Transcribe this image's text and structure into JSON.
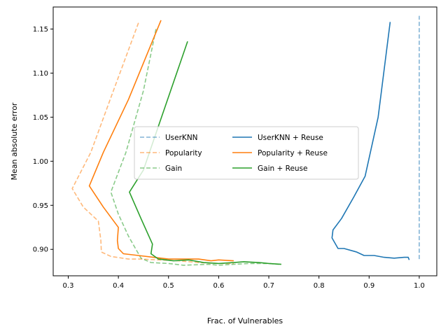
{
  "chart_data": {
    "type": "line",
    "title": "",
    "xlabel": "Frac. of Vulnerables",
    "ylabel": "Mean absolute error",
    "xlim": [
      0.27,
      1.035
    ],
    "ylim": [
      0.87,
      1.175
    ],
    "xticks": [
      0.3,
      0.4,
      0.5,
      0.6,
      0.7,
      0.8,
      0.9,
      1.0
    ],
    "xtick_labels": [
      "0.3",
      "0.4",
      "0.5",
      "0.6",
      "0.7",
      "0.8",
      "0.9",
      "1.0"
    ],
    "yticks": [
      0.9,
      0.95,
      1.0,
      1.05,
      1.1,
      1.15
    ],
    "ytick_labels": [
      "0.90",
      "0.95",
      "1.00",
      "1.05",
      "1.10",
      "1.15"
    ],
    "grid": false,
    "legend_position": "center-right",
    "series": [
      {
        "name": "UserKNN",
        "color": "#1f77b4",
        "style": "dashed",
        "faded": true,
        "points": [
          [
            1.0,
            0.889
          ],
          [
            1.0,
            0.93
          ],
          [
            1.0,
            1.0
          ],
          [
            1.0,
            1.165
          ]
        ]
      },
      {
        "name": "Popularity",
        "color": "#ff7f0e",
        "style": "dashed",
        "faded": true,
        "points": [
          [
            0.44,
            1.157
          ],
          [
            0.39,
            1.08
          ],
          [
            0.345,
            1.01
          ],
          [
            0.308,
            0.969
          ],
          [
            0.33,
            0.948
          ],
          [
            0.36,
            0.932
          ],
          [
            0.365,
            0.91
          ],
          [
            0.366,
            0.897
          ],
          [
            0.385,
            0.892
          ],
          [
            0.42,
            0.889
          ],
          [
            0.445,
            0.889
          ],
          [
            0.48,
            0.888
          ],
          [
            0.52,
            0.887
          ],
          [
            0.56,
            0.885
          ],
          [
            0.6,
            0.884
          ],
          [
            0.63,
            0.884
          ]
        ]
      },
      {
        "name": "Gain",
        "color": "#2ca02c",
        "style": "dashed",
        "faded": true,
        "points": [
          [
            0.475,
            1.15
          ],
          [
            0.45,
            1.08
          ],
          [
            0.415,
            1.01
          ],
          [
            0.385,
            0.965
          ],
          [
            0.4,
            0.94
          ],
          [
            0.42,
            0.915
          ],
          [
            0.435,
            0.9
          ],
          [
            0.445,
            0.89
          ],
          [
            0.465,
            0.885
          ],
          [
            0.5,
            0.884
          ],
          [
            0.53,
            0.882
          ],
          [
            0.58,
            0.883
          ],
          [
            0.6,
            0.882
          ],
          [
            0.63,
            0.883
          ],
          [
            0.66,
            0.884
          ],
          [
            0.7,
            0.884
          ],
          [
            0.72,
            0.883
          ]
        ]
      },
      {
        "name": "UserKNN + Reuse",
        "color": "#1f77b4",
        "style": "solid",
        "faded": false,
        "points": [
          [
            0.942,
            1.158
          ],
          [
            0.918,
            1.05
          ],
          [
            0.892,
            0.983
          ],
          [
            0.87,
            0.96
          ],
          [
            0.845,
            0.935
          ],
          [
            0.828,
            0.922
          ],
          [
            0.826,
            0.913
          ],
          [
            0.838,
            0.901
          ],
          [
            0.85,
            0.901
          ],
          [
            0.875,
            0.897
          ],
          [
            0.89,
            0.893
          ],
          [
            0.91,
            0.893
          ],
          [
            0.93,
            0.891
          ],
          [
            0.95,
            0.89
          ],
          [
            0.97,
            0.891
          ],
          [
            0.978,
            0.891
          ],
          [
            0.98,
            0.888
          ]
        ]
      },
      {
        "name": "Popularity + Reuse",
        "color": "#ff7f0e",
        "style": "solid",
        "faded": false,
        "points": [
          [
            0.485,
            1.16
          ],
          [
            0.42,
            1.07
          ],
          [
            0.37,
            1.01
          ],
          [
            0.342,
            0.972
          ],
          [
            0.37,
            0.948
          ],
          [
            0.4,
            0.925
          ],
          [
            0.398,
            0.91
          ],
          [
            0.4,
            0.901
          ],
          [
            0.41,
            0.895
          ],
          [
            0.44,
            0.893
          ],
          [
            0.47,
            0.891
          ],
          [
            0.5,
            0.889
          ],
          [
            0.53,
            0.889
          ],
          [
            0.56,
            0.889
          ],
          [
            0.585,
            0.887
          ],
          [
            0.6,
            0.888
          ],
          [
            0.63,
            0.887
          ]
        ]
      },
      {
        "name": "Gain + Reuse",
        "color": "#2ca02c",
        "style": "solid",
        "faded": false,
        "points": [
          [
            0.538,
            1.136
          ],
          [
            0.48,
            1.04
          ],
          [
            0.45,
            0.99
          ],
          [
            0.422,
            0.965
          ],
          [
            0.445,
            0.935
          ],
          [
            0.468,
            0.906
          ],
          [
            0.465,
            0.895
          ],
          [
            0.48,
            0.889
          ],
          [
            0.51,
            0.887
          ],
          [
            0.54,
            0.888
          ],
          [
            0.57,
            0.885
          ],
          [
            0.6,
            0.884
          ],
          [
            0.63,
            0.885
          ],
          [
            0.65,
            0.886
          ],
          [
            0.68,
            0.885
          ],
          [
            0.7,
            0.884
          ],
          [
            0.725,
            0.883
          ]
        ]
      }
    ]
  }
}
